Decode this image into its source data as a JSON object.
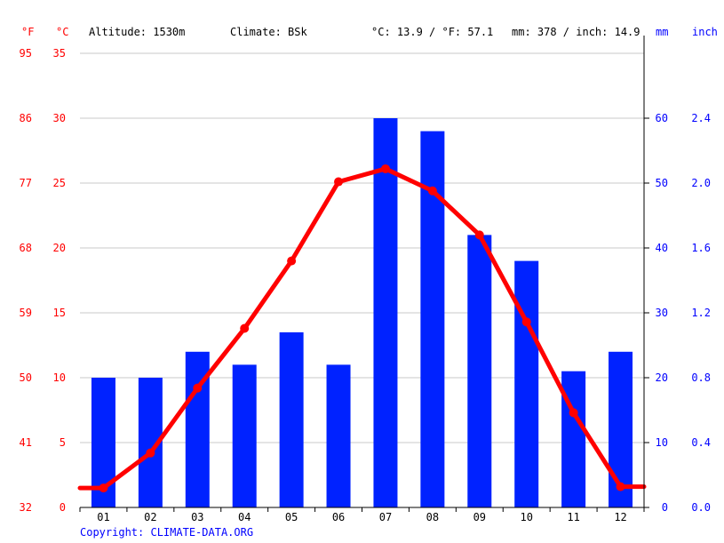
{
  "header": {
    "unit_f": "°F",
    "unit_c": "°C",
    "altitude": "Altitude: 1530m",
    "climate": "Climate: BSk",
    "temp_avg": "°C: 13.9 / °F: 57.1",
    "precip_avg": "mm: 378 / inch: 14.9",
    "unit_mm": "mm",
    "unit_inch": "inch"
  },
  "copyright": "Copyright: CLIMATE-DATA.ORG",
  "colors": {
    "bars": "#0022ff",
    "line": "#ff0000",
    "left_axis": "#ff0000",
    "right_axis": "#0000ff",
    "grid": "#c8c8c8"
  },
  "chart_data": {
    "type": "bar",
    "categories": [
      "01",
      "02",
      "03",
      "04",
      "05",
      "06",
      "07",
      "08",
      "09",
      "10",
      "11",
      "12"
    ],
    "series": [
      {
        "type": "bar",
        "axis": "right",
        "values": [
          20,
          20,
          24,
          22,
          27,
          22,
          60,
          58,
          42,
          38,
          21,
          24
        ]
      },
      {
        "type": "line",
        "axis": "left",
        "values": [
          1.5,
          4.2,
          9.2,
          13.8,
          19.0,
          25.1,
          26.1,
          24.4,
          21.0,
          14.3,
          7.3,
          1.6
        ]
      }
    ],
    "y_left": {
      "ylim": [
        0,
        35
      ],
      "ticks": [
        0,
        5,
        10,
        15,
        20,
        25,
        30,
        35
      ]
    },
    "y_left_f": {
      "ticks": [
        32,
        41,
        50,
        59,
        68,
        77,
        86,
        95
      ]
    },
    "y_right_mm": {
      "ylim": [
        0,
        70
      ],
      "ticks": [
        0,
        10,
        20,
        30,
        40,
        50,
        60
      ]
    },
    "y_right_inch": {
      "ticks": [
        "0.0",
        "0.4",
        "0.8",
        "1.2",
        "1.6",
        "2.0",
        "2.4"
      ]
    },
    "grid": true
  }
}
